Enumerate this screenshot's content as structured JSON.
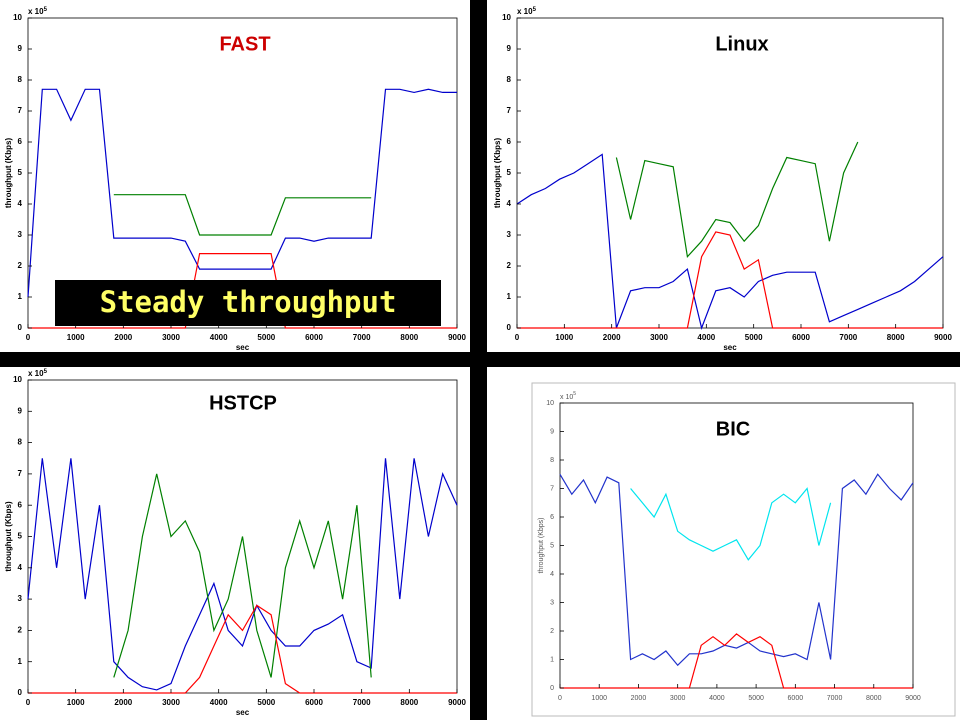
{
  "chart_data": [
    {
      "type": "line",
      "title": "FAST",
      "title_color": "#cc0000",
      "annotation": "Steady throughput",
      "xlabel": "sec",
      "ylabel": "throughput (Kbps)",
      "axis_multiplier": "x 10",
      "axis_multiplier_power": "5",
      "xlim": [
        0,
        9000
      ],
      "xticks": [
        0,
        1000,
        2000,
        3000,
        4000,
        5000,
        6000,
        7000,
        8000,
        9000
      ],
      "ylim": [
        0,
        10
      ],
      "yticks": [
        0,
        1,
        2,
        3,
        4,
        5,
        6,
        7,
        8,
        9,
        10
      ],
      "x": [
        0,
        300,
        600,
        900,
        1200,
        1500,
        1800,
        2100,
        2400,
        2700,
        3000,
        3300,
        3600,
        3900,
        4200,
        4500,
        4800,
        5100,
        5400,
        5700,
        6000,
        6300,
        6600,
        6900,
        7200,
        7500,
        7800,
        8100,
        8400,
        8700,
        9000
      ],
      "series": [
        {
          "color": "#0000cc",
          "values": [
            1.0,
            7.7,
            7.7,
            6.7,
            7.7,
            7.7,
            2.9,
            2.9,
            2.9,
            2.9,
            2.9,
            2.8,
            1.9,
            1.9,
            1.9,
            1.9,
            1.9,
            1.9,
            2.9,
            2.9,
            2.8,
            2.9,
            2.9,
            2.9,
            2.9,
            7.7,
            7.7,
            7.6,
            7.7,
            7.6,
            7.6
          ]
        },
        {
          "color": "#008000",
          "values": [
            null,
            null,
            null,
            null,
            null,
            null,
            4.3,
            4.3,
            4.3,
            4.3,
            4.3,
            4.3,
            3.0,
            3.0,
            3.0,
            3.0,
            3.0,
            3.0,
            4.2,
            4.2,
            4.2,
            4.2,
            4.2,
            4.2,
            4.2,
            null,
            null,
            null,
            null,
            null,
            null
          ]
        },
        {
          "color": "#ff0000",
          "values": [
            0,
            0,
            0,
            0,
            0,
            0,
            0,
            0,
            0,
            0,
            0,
            0,
            2.4,
            2.4,
            2.4,
            2.4,
            2.4,
            2.4,
            0,
            0,
            0,
            0,
            0,
            0,
            0,
            0,
            0,
            0,
            0,
            0,
            0
          ]
        }
      ]
    },
    {
      "type": "line",
      "title": "Linux",
      "title_color": "#000000",
      "xlabel": "sec",
      "ylabel": "throughput (Kbps)",
      "axis_multiplier": "x 10",
      "axis_multiplier_power": "5",
      "xlim": [
        0,
        9000
      ],
      "xticks": [
        0,
        1000,
        2000,
        3000,
        4000,
        5000,
        6000,
        7000,
        8000,
        9000
      ],
      "ylim": [
        0,
        10
      ],
      "yticks": [
        0,
        1,
        2,
        3,
        4,
        5,
        6,
        7,
        8,
        9,
        10
      ],
      "x": [
        0,
        300,
        600,
        900,
        1200,
        1500,
        1800,
        2100,
        2400,
        2700,
        3000,
        3300,
        3600,
        3900,
        4200,
        4500,
        4800,
        5100,
        5400,
        5700,
        6000,
        6300,
        6600,
        6900,
        7200,
        7500,
        7800,
        8100,
        8400,
        8700,
        9000
      ],
      "series": [
        {
          "color": "#0000cc",
          "values": [
            4.0,
            4.3,
            4.5,
            4.8,
            5.0,
            5.3,
            5.6,
            0,
            1.2,
            1.3,
            1.3,
            1.5,
            1.9,
            0,
            1.2,
            1.3,
            1.0,
            1.5,
            1.7,
            1.8,
            1.8,
            1.8,
            0.2,
            0.4,
            0.6,
            0.8,
            1.0,
            1.2,
            1.5,
            1.9,
            2.3
          ]
        },
        {
          "color": "#008000",
          "values": [
            null,
            null,
            null,
            null,
            null,
            null,
            null,
            5.5,
            3.5,
            5.4,
            5.3,
            5.2,
            2.3,
            2.8,
            3.5,
            3.4,
            2.8,
            3.3,
            4.5,
            5.5,
            5.4,
            5.3,
            2.8,
            5.0,
            6.0,
            null,
            null,
            null,
            null,
            null,
            null
          ]
        },
        {
          "color": "#ff0000",
          "values": [
            0,
            0,
            0,
            0,
            0,
            0,
            0,
            0,
            0,
            0,
            0,
            0,
            0,
            2.3,
            3.1,
            3.0,
            1.9,
            2.2,
            0,
            0,
            0,
            0,
            0,
            0,
            0,
            0,
            0,
            0,
            0,
            0,
            0
          ]
        }
      ]
    },
    {
      "type": "line",
      "title": "HSTCP",
      "title_color": "#000000",
      "xlabel": "sec",
      "ylabel": "throughput (Kbps)",
      "axis_multiplier": "x 10",
      "axis_multiplier_power": "5",
      "xlim": [
        0,
        9000
      ],
      "xticks": [
        0,
        1000,
        2000,
        3000,
        4000,
        5000,
        6000,
        7000,
        8000,
        9000
      ],
      "ylim": [
        0,
        10
      ],
      "yticks": [
        0,
        1,
        2,
        3,
        4,
        5,
        6,
        7,
        8,
        9,
        10
      ],
      "x": [
        0,
        300,
        600,
        900,
        1200,
        1500,
        1800,
        2100,
        2400,
        2700,
        3000,
        3300,
        3600,
        3900,
        4200,
        4500,
        4800,
        5100,
        5400,
        5700,
        6000,
        6300,
        6600,
        6900,
        7200,
        7500,
        7800,
        8100,
        8400,
        8700,
        9000
      ],
      "series": [
        {
          "color": "#0000cc",
          "values": [
            3,
            7.5,
            4,
            7.5,
            3,
            6,
            1,
            0.5,
            0.2,
            0.1,
            0.3,
            1.5,
            2.5,
            3.5,
            2.0,
            1.5,
            2.8,
            2.0,
            1.5,
            1.5,
            2.0,
            2.2,
            2.5,
            1.0,
            0.8,
            7.5,
            3,
            7.5,
            5,
            7,
            6
          ]
        },
        {
          "color": "#008000",
          "values": [
            null,
            null,
            null,
            null,
            null,
            null,
            0.5,
            2,
            5,
            7,
            5,
            5.5,
            4.5,
            2,
            3,
            5,
            2,
            0.5,
            4,
            5.5,
            4,
            5.5,
            3,
            6,
            0.5,
            null,
            null,
            null,
            null,
            null,
            null
          ]
        },
        {
          "color": "#ff0000",
          "values": [
            0,
            0,
            0,
            0,
            0,
            0,
            0,
            0,
            0,
            0,
            0,
            0,
            0.5,
            1.5,
            2.5,
            2.0,
            2.8,
            2.5,
            0.3,
            0,
            0,
            0,
            0,
            0,
            0,
            0,
            0,
            0,
            0,
            0,
            0
          ]
        }
      ]
    },
    {
      "type": "line",
      "title": "BIC",
      "title_color": "#000000",
      "xlabel": "",
      "ylabel": "throughput (Kbps)",
      "axis_multiplier": "x 10",
      "axis_multiplier_power": "5",
      "xlim": [
        0,
        9000
      ],
      "xticks": [
        0,
        1000,
        2000,
        3000,
        4000,
        5000,
        6000,
        7000,
        8000,
        9000
      ],
      "ylim": [
        0,
        10
      ],
      "yticks": [
        0,
        1,
        2,
        3,
        4,
        5,
        6,
        7,
        8,
        9,
        10
      ],
      "x": [
        0,
        300,
        600,
        900,
        1200,
        1500,
        1800,
        2100,
        2400,
        2700,
        3000,
        3300,
        3600,
        3900,
        4200,
        4500,
        4800,
        5100,
        5400,
        5700,
        6000,
        6300,
        6600,
        6900,
        7200,
        7500,
        7800,
        8100,
        8400,
        8700,
        9000
      ],
      "series": [
        {
          "color": "#2233cc",
          "values": [
            7.5,
            6.8,
            7.3,
            6.5,
            7.4,
            7.2,
            1.0,
            1.2,
            1.0,
            1.3,
            0.8,
            1.2,
            1.2,
            1.3,
            1.5,
            1.4,
            1.6,
            1.3,
            1.2,
            1.1,
            1.2,
            1.0,
            3,
            1.0,
            7.0,
            7.3,
            6.8,
            7.5,
            7.0,
            6.6,
            7.2
          ]
        },
        {
          "color": "#00e5ee",
          "values": [
            null,
            null,
            null,
            null,
            null,
            null,
            7.0,
            6.5,
            6.0,
            6.8,
            5.5,
            5.2,
            5.0,
            4.8,
            5.0,
            5.2,
            4.5,
            5.0,
            6.5,
            6.8,
            6.5,
            7.0,
            5.0,
            6.5,
            null,
            null,
            null,
            null,
            null,
            null,
            null
          ]
        },
        {
          "color": "#ff0000",
          "values": [
            0,
            0,
            0,
            0,
            0,
            0,
            0,
            0,
            0,
            0,
            0,
            0,
            1.5,
            1.8,
            1.5,
            1.9,
            1.6,
            1.8,
            1.5,
            0,
            0,
            0,
            0,
            0,
            0,
            0,
            0,
            0,
            0,
            0,
            0
          ]
        }
      ]
    }
  ]
}
